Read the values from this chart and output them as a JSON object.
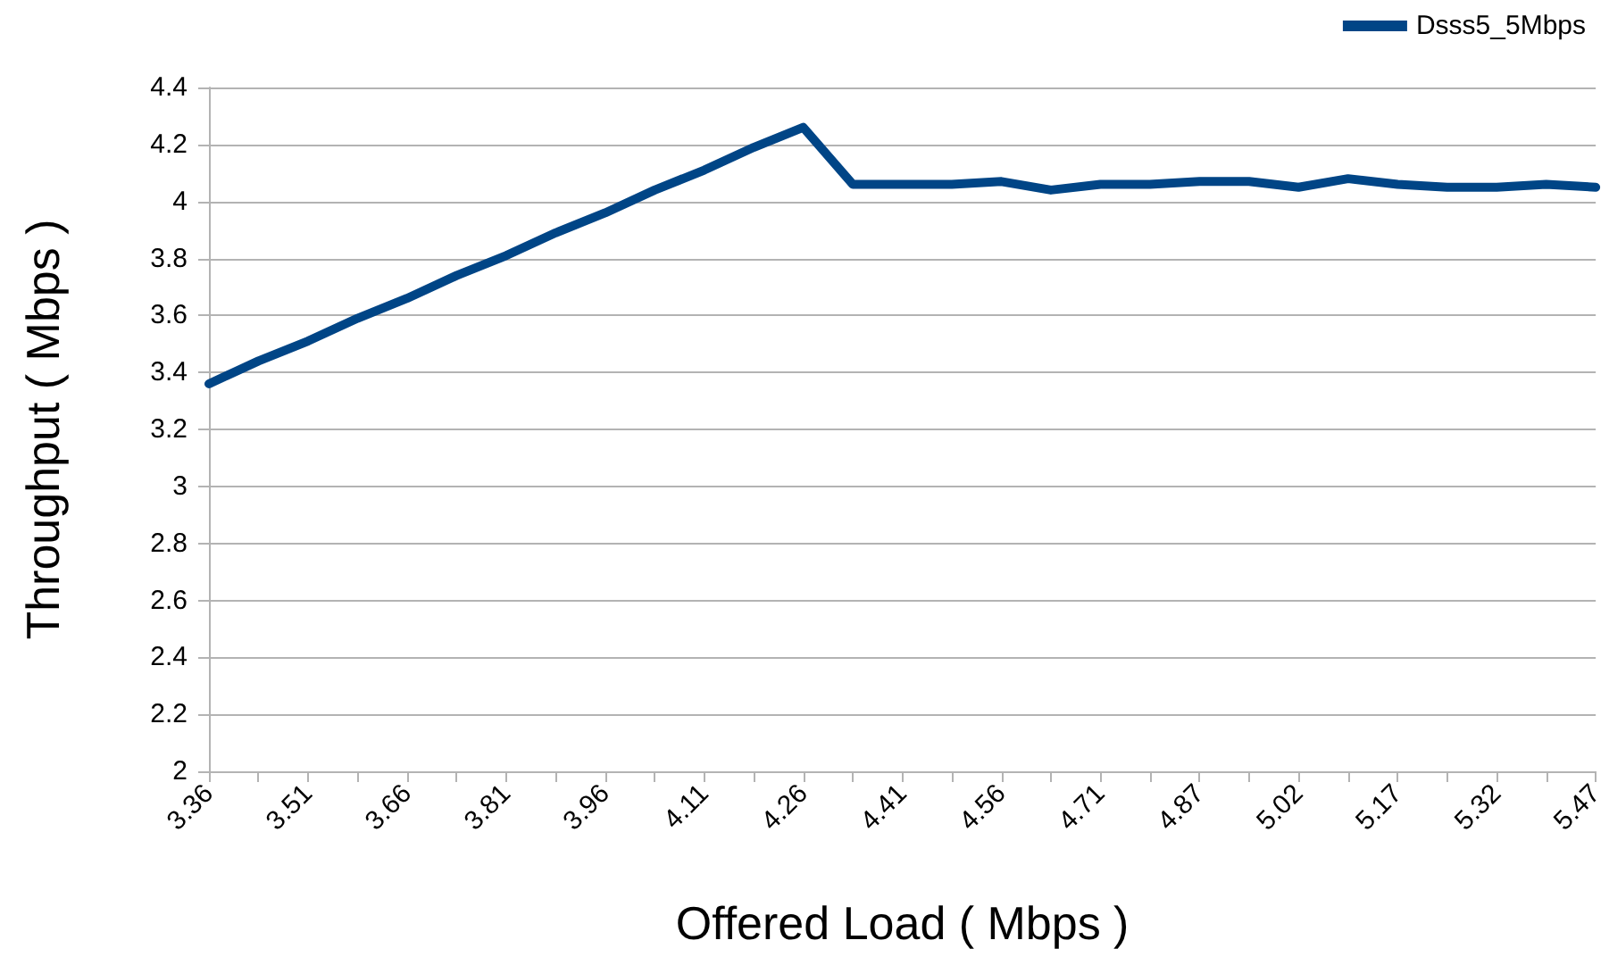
{
  "chart_data": {
    "type": "line",
    "xlabel": "Offered Load ( Mbps )",
    "ylabel": "Throughput ( Mbps )",
    "categories": [
      "3.36",
      null,
      "3.51",
      null,
      "3.66",
      null,
      "3.81",
      null,
      "3.96",
      null,
      "4.11",
      null,
      "4.26",
      null,
      "4.41",
      null,
      "4.56",
      null,
      "4.71",
      null,
      "4.87",
      null,
      "5.02",
      null,
      "5.17",
      null,
      "5.32",
      null,
      "5.47"
    ],
    "series": [
      {
        "name": "Dsss5_5Mbps",
        "color": "#004586",
        "values": [
          3.36,
          3.44,
          3.51,
          3.59,
          3.66,
          3.74,
          3.81,
          3.89,
          3.96,
          4.04,
          4.11,
          4.19,
          4.26,
          4.06,
          4.06,
          4.06,
          4.07,
          4.04,
          4.06,
          4.06,
          4.07,
          4.07,
          4.05,
          4.08,
          4.06,
          4.05,
          4.05,
          4.06,
          4.05
        ]
      }
    ],
    "ylim": [
      2,
      4.4
    ],
    "yticks": [
      2,
      2.2,
      2.4,
      2.6,
      2.8,
      3,
      3.2,
      3.4,
      3.6,
      3.8,
      4,
      4.2,
      4.4
    ],
    "grid": "y",
    "legend": "top right",
    "marker": "none",
    "line_style": "solid"
  }
}
